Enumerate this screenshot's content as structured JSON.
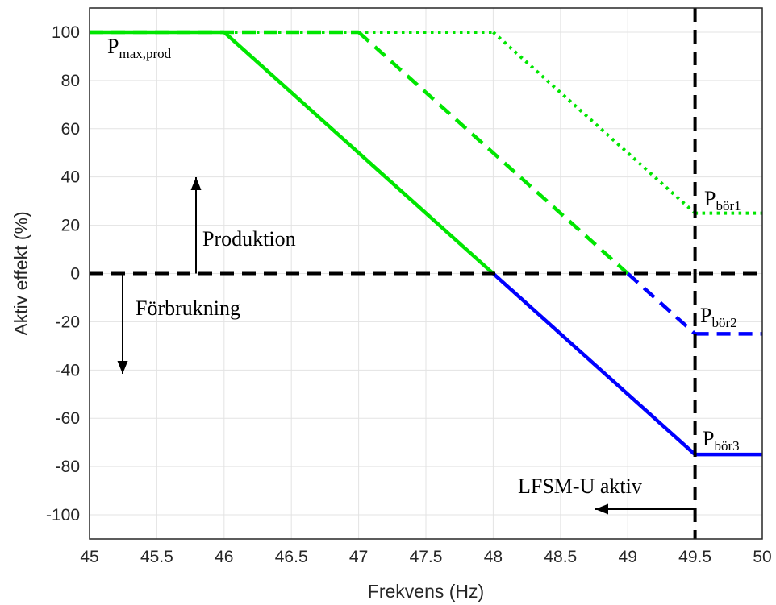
{
  "chart_data": {
    "type": "line",
    "xlabel": "Frekvens (Hz)",
    "ylabel": "Aktiv effekt (%)",
    "xlim": [
      45,
      50
    ],
    "ylim": [
      -110,
      110
    ],
    "xticks": [
      45,
      45.5,
      46,
      46.5,
      47,
      47.5,
      48,
      48.5,
      49,
      49.5,
      50
    ],
    "xtick_labels": [
      "45",
      "45.5",
      "46",
      "46.5",
      "47",
      "47.5",
      "48",
      "48.5",
      "49",
      "49.5",
      "50"
    ],
    "yticks": [
      100,
      80,
      60,
      40,
      20,
      0,
      -20,
      -40,
      -60,
      -80,
      -100
    ],
    "ytick_labels": [
      "100",
      "80",
      "60",
      "40",
      "20",
      "0",
      "-20",
      "-40",
      "-60",
      "-80",
      "-100"
    ],
    "grid": true,
    "colors": {
      "production": "#00e600",
      "consumption": "#0000ff",
      "reference": "#000000"
    },
    "series": [
      {
        "style": "dotted",
        "x": [
          45,
          48,
          49.5,
          50
        ],
        "y": [
          100,
          100,
          25,
          25
        ]
      },
      {
        "style": "dashed",
        "x": [
          45,
          47,
          49.5,
          50
        ],
        "y": [
          100,
          100,
          -25,
          -25
        ]
      },
      {
        "style": "solid",
        "x": [
          45,
          46,
          49.5,
          50
        ],
        "y": [
          100,
          100,
          -75,
          -75
        ]
      }
    ],
    "reference_lines": [
      {
        "orientation": "horizontal",
        "value": 0,
        "style": "dashed"
      },
      {
        "orientation": "vertical",
        "value": 49.5,
        "style": "dashed"
      }
    ],
    "annotations": {
      "pmax": {
        "main": "P",
        "sub": "max,prod"
      },
      "pbor1": {
        "main": "P",
        "sub": "bör1"
      },
      "pbor2": {
        "main": "P",
        "sub": "bör2"
      },
      "pbor3": {
        "main": "P",
        "sub": "bör3"
      },
      "produktion": "Produktion",
      "forbrukning": "Förbrukning",
      "lfsm": "LFSM-U aktiv"
    }
  }
}
